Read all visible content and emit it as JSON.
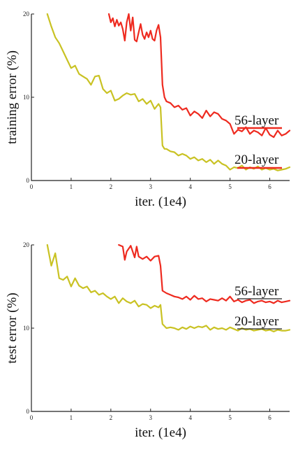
{
  "chart_data": [
    {
      "type": "line",
      "ylabel": "training error (%)",
      "xlabel": "iter. (1e4)",
      "xlim": [
        0,
        6.5
      ],
      "ylim": [
        0,
        20
      ],
      "xticks": [
        "0",
        "1",
        "2",
        "3",
        "4",
        "5",
        "6"
      ],
      "yticks": [
        "0",
        "10",
        "20"
      ],
      "grid": false,
      "series": [
        {
          "name": "56-layer",
          "color": "#ee2a1f",
          "x": [
            1.95,
            2.0,
            2.05,
            2.1,
            2.15,
            2.2,
            2.25,
            2.3,
            2.35,
            2.4,
            2.45,
            2.5,
            2.55,
            2.6,
            2.65,
            2.7,
            2.75,
            2.8,
            2.85,
            2.9,
            2.95,
            3.0,
            3.05,
            3.1,
            3.15,
            3.2,
            3.25,
            3.3,
            3.35,
            3.4,
            3.5,
            3.6,
            3.7,
            3.8,
            3.9,
            4.0,
            4.1,
            4.2,
            4.3,
            4.4,
            4.5,
            4.6,
            4.7,
            4.8,
            4.9,
            5.0,
            5.1,
            5.2,
            5.3,
            5.4,
            5.5,
            5.6,
            5.7,
            5.8,
            5.9,
            6.0,
            6.1,
            6.2,
            6.3,
            6.4,
            6.5
          ],
          "y": [
            20.0,
            19.0,
            19.5,
            18.5,
            19.3,
            18.6,
            19.0,
            18.2,
            16.8,
            19.0,
            20.0,
            18.0,
            19.6,
            16.9,
            16.7,
            17.8,
            18.8,
            17.5,
            17.0,
            17.8,
            17.2,
            18.0,
            17.0,
            16.8,
            18.0,
            18.7,
            17.2,
            11.5,
            10.0,
            9.5,
            9.3,
            8.8,
            9.0,
            8.5,
            8.7,
            7.8,
            8.3,
            8.0,
            7.5,
            8.4,
            7.7,
            8.2,
            8.0,
            7.4,
            7.2,
            6.8,
            5.6,
            6.1,
            5.9,
            6.4,
            5.6,
            6.0,
            5.8,
            5.4,
            6.3,
            5.5,
            5.2,
            6.0,
            5.4,
            5.6,
            6.0
          ]
        },
        {
          "name": "20-layer",
          "color": "#c9c223",
          "x": [
            0.4,
            0.5,
            0.6,
            0.7,
            0.8,
            0.9,
            1.0,
            1.1,
            1.2,
            1.3,
            1.4,
            1.5,
            1.6,
            1.7,
            1.8,
            1.9,
            2.0,
            2.1,
            2.2,
            2.3,
            2.4,
            2.5,
            2.6,
            2.7,
            2.8,
            2.9,
            3.0,
            3.1,
            3.2,
            3.25,
            3.3,
            3.35,
            3.4,
            3.5,
            3.6,
            3.7,
            3.8,
            3.9,
            4.0,
            4.1,
            4.2,
            4.3,
            4.4,
            4.5,
            4.6,
            4.7,
            4.8,
            4.9,
            5.0,
            5.1,
            5.2,
            5.3,
            5.4,
            5.5,
            5.6,
            5.7,
            5.8,
            5.9,
            6.0,
            6.1,
            6.2,
            6.3,
            6.4,
            6.5
          ],
          "y": [
            20.0,
            18.5,
            17.2,
            16.5,
            15.5,
            14.5,
            13.5,
            13.8,
            12.8,
            12.5,
            12.2,
            11.5,
            12.5,
            12.6,
            11.0,
            10.5,
            10.8,
            9.6,
            9.8,
            10.2,
            10.5,
            10.3,
            10.4,
            9.5,
            9.8,
            9.2,
            9.6,
            8.6,
            9.2,
            8.8,
            4.2,
            3.8,
            3.8,
            3.5,
            3.4,
            3.0,
            3.2,
            3.0,
            2.6,
            2.8,
            2.4,
            2.6,
            2.2,
            2.5,
            2.0,
            2.4,
            2.0,
            1.8,
            1.3,
            1.6,
            1.5,
            1.8,
            1.3,
            1.6,
            1.4,
            1.7,
            1.3,
            1.5,
            1.3,
            1.4,
            1.2,
            1.3,
            1.4,
            1.6
          ]
        }
      ],
      "legend": [
        {
          "label": "56-layer",
          "color": "#ee2a1f"
        },
        {
          "label": "20-layer",
          "color": "#c9c223"
        }
      ],
      "legend_placement": "right"
    },
    {
      "type": "line",
      "ylabel": "test error (%)",
      "xlabel": "iter. (1e4)",
      "xlim": [
        0,
        6.5
      ],
      "ylim": [
        0,
        20
      ],
      "xticks": [
        "0",
        "1",
        "2",
        "3",
        "4",
        "5",
        "6"
      ],
      "yticks": [
        "0",
        "10",
        "20"
      ],
      "grid": false,
      "series": [
        {
          "name": "56-layer",
          "color": "#ee2a1f",
          "x": [
            2.2,
            2.3,
            2.35,
            2.4,
            2.5,
            2.6,
            2.65,
            2.7,
            2.8,
            2.9,
            3.0,
            3.1,
            3.2,
            3.25,
            3.3,
            3.4,
            3.5,
            3.6,
            3.7,
            3.8,
            3.9,
            4.0,
            4.1,
            4.2,
            4.3,
            4.4,
            4.5,
            4.6,
            4.7,
            4.8,
            4.9,
            5.0,
            5.1,
            5.2,
            5.3,
            5.4,
            5.5,
            5.6,
            5.7,
            5.8,
            5.9,
            6.0,
            6.1,
            6.2,
            6.3,
            6.4,
            6.5
          ],
          "y": [
            20.0,
            19.8,
            18.2,
            19.2,
            19.9,
            18.5,
            19.8,
            18.6,
            18.3,
            18.6,
            18.1,
            18.6,
            18.7,
            17.5,
            14.5,
            14.2,
            14.0,
            13.8,
            13.7,
            13.5,
            13.8,
            13.4,
            13.9,
            13.5,
            13.6,
            13.2,
            13.5,
            13.4,
            13.3,
            13.6,
            13.3,
            13.8,
            13.2,
            13.4,
            13.1,
            13.3,
            13.4,
            13.0,
            13.2,
            13.3,
            13.1,
            13.2,
            13.0,
            13.3,
            13.1,
            13.2,
            13.3
          ]
        },
        {
          "name": "20-layer",
          "color": "#c9c223",
          "x": [
            0.4,
            0.5,
            0.6,
            0.7,
            0.8,
            0.9,
            1.0,
            1.1,
            1.2,
            1.3,
            1.4,
            1.5,
            1.6,
            1.7,
            1.8,
            1.9,
            2.0,
            2.1,
            2.2,
            2.3,
            2.4,
            2.5,
            2.6,
            2.7,
            2.8,
            2.9,
            3.0,
            3.1,
            3.2,
            3.25,
            3.3,
            3.4,
            3.5,
            3.6,
            3.7,
            3.8,
            3.9,
            4.0,
            4.1,
            4.2,
            4.3,
            4.4,
            4.5,
            4.6,
            4.7,
            4.8,
            4.9,
            5.0,
            5.1,
            5.2,
            5.3,
            5.4,
            5.5,
            5.6,
            5.7,
            5.8,
            5.9,
            6.0,
            6.1,
            6.2,
            6.3,
            6.4,
            6.5
          ],
          "y": [
            20.0,
            17.5,
            19.0,
            16.0,
            15.8,
            16.2,
            15.0,
            16.0,
            15.1,
            14.8,
            15.0,
            14.3,
            14.5,
            14.0,
            14.2,
            13.8,
            13.5,
            13.8,
            13.0,
            13.6,
            13.2,
            13.0,
            13.3,
            12.6,
            12.9,
            12.8,
            12.4,
            12.7,
            12.5,
            12.8,
            10.5,
            10.0,
            10.1,
            10.0,
            9.8,
            10.1,
            9.9,
            10.2,
            10.0,
            10.2,
            10.1,
            10.3,
            9.8,
            10.1,
            9.9,
            10.0,
            9.8,
            10.1,
            9.9,
            9.7,
            10.0,
            9.8,
            9.9,
            9.7,
            9.8,
            9.9,
            9.7,
            9.8,
            9.6,
            9.8,
            9.7,
            9.7,
            9.8
          ]
        }
      ],
      "legend": [
        {
          "label": "56-layer",
          "color": "#ee2a1f"
        },
        {
          "label": "20-layer",
          "color": "#c9c223"
        }
      ],
      "legend_placement": "right"
    }
  ]
}
